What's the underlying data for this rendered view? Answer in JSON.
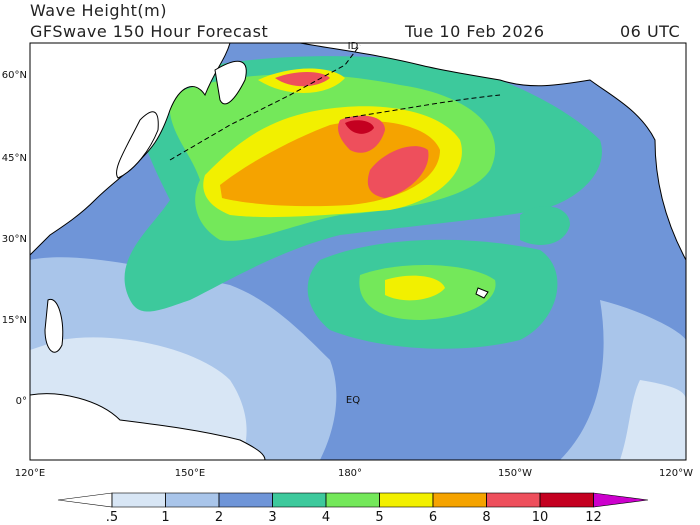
{
  "header": {
    "title": "Wave Height(m)",
    "subtitle": "GFSwave 150 Hour Forecast",
    "date": "Tue 10 Feb 2026",
    "time": "06 UTC"
  },
  "map": {
    "lat_labels": [
      "60°N",
      "45°N",
      "30°N",
      "15°N",
      "0°"
    ],
    "lon_labels": [
      "120°E",
      "150°E",
      "180°",
      "150°W",
      "120°W"
    ],
    "annotations": [
      "EQ",
      "ID"
    ]
  },
  "colorbar": {
    "levels": [
      {
        "value": 0.5,
        "label": ".5"
      },
      1,
      2,
      3,
      4,
      5,
      6,
      8,
      10,
      12
    ],
    "colors": [
      "#ffffff",
      "#d8e6f5",
      "#a9c5ea",
      "#6f95d8",
      "#3dc99c",
      "#74e85a",
      "#f2f000",
      "#f5a300",
      "#ee4f5c",
      "#c40020",
      "#cc00cc"
    ]
  }
}
